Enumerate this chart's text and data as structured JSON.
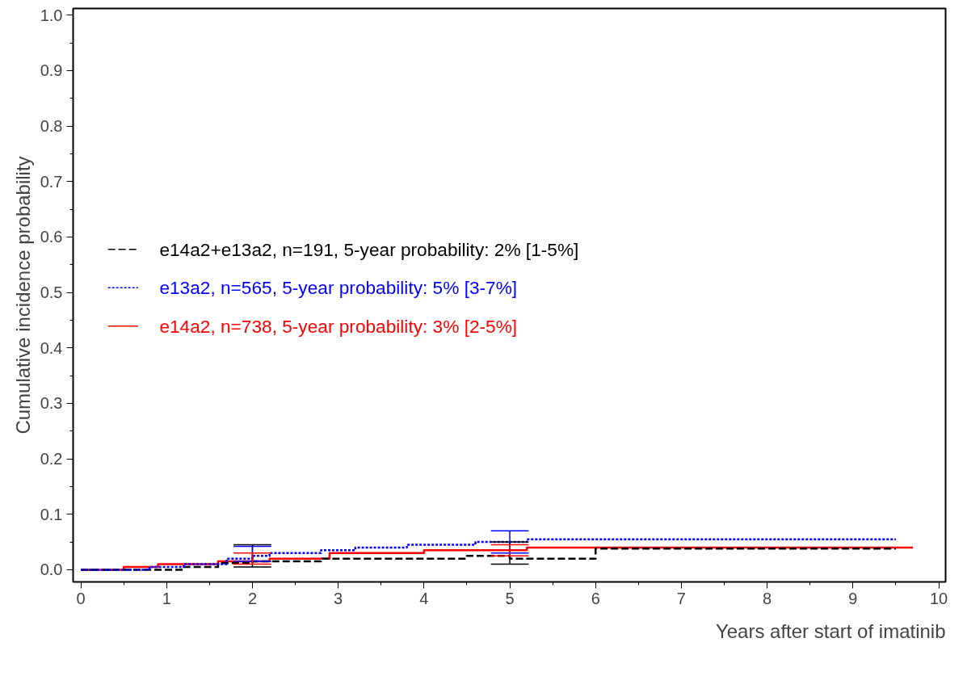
{
  "chart_data": {
    "type": "step",
    "xlabel": "Years after start of imatinib",
    "ylabel": "Cumulative incidence probability",
    "xlim": [
      -0.09,
      10.08
    ],
    "ylim": [
      -0.022,
      1.012
    ],
    "xticks": [
      0,
      1,
      2,
      3,
      4,
      5,
      6,
      7,
      8,
      9,
      10
    ],
    "yticks": [
      {
        "value": 0,
        "label": "0.0"
      },
      {
        "value": 0.1,
        "label": "0.1"
      },
      {
        "value": 0.2,
        "label": "0.2"
      },
      {
        "value": 0.3,
        "label": "0.3"
      },
      {
        "value": 0.4,
        "label": "0.4"
      },
      {
        "value": 0.5,
        "label": "0.5"
      },
      {
        "value": 0.6,
        "label": "0.6"
      },
      {
        "value": 0.7,
        "label": "0.7"
      },
      {
        "value": 0.8,
        "label": "0.8"
      },
      {
        "value": 0.9,
        "label": "0.9"
      },
      {
        "value": 1.0,
        "label": "1.0"
      }
    ],
    "grid": false,
    "legend": "left",
    "marker": "none",
    "series": [
      {
        "name": "e14a2+e13a2, n=191, 5-year probability: 2% [1-5%]",
        "color": "#000000",
        "line_style": "dashed",
        "x": [
          0,
          1.2,
          1.6,
          2,
          2.8,
          4.5,
          5,
          6,
          9.5
        ],
        "values": [
          0,
          0.005,
          0.012,
          0.015,
          0.02,
          0.025,
          0.02,
          0.038,
          0.038
        ],
        "errors": [
          null,
          null,
          null,
          [
            0.005,
            0.045
          ],
          null,
          null,
          [
            0.01,
            0.05
          ],
          null,
          null
        ]
      },
      {
        "name": "e13a2, n=565, 5-year probability: 5% [3-7%]",
        "color": "#0000ff",
        "line_style": "dotted",
        "x": [
          0,
          0.8,
          1.2,
          1.7,
          2,
          2.2,
          2.8,
          3.2,
          3.8,
          4.6,
          5,
          5.2,
          9.5
        ],
        "values": [
          0,
          0.005,
          0.01,
          0.02,
          0.025,
          0.03,
          0.035,
          0.04,
          0.045,
          0.05,
          0.05,
          0.055,
          0.055
        ],
        "errors": [
          null,
          null,
          null,
          null,
          [
            0.015,
            0.042
          ],
          null,
          null,
          null,
          null,
          null,
          [
            0.03,
            0.07
          ],
          null,
          null
        ]
      },
      {
        "name": "e14a2, n=738, 5-year probability: 3% [2-5%]",
        "color": "#ff0000",
        "line_style": "solid",
        "x": [
          0,
          0.5,
          0.9,
          1.6,
          2,
          2.2,
          2.9,
          4,
          5,
          5.2,
          9.7
        ],
        "values": [
          0,
          0.005,
          0.01,
          0.015,
          0.015,
          0.02,
          0.03,
          0.035,
          0.035,
          0.04,
          0.04
        ],
        "errors": [
          null,
          null,
          null,
          null,
          [
            0.01,
            0.03
          ],
          null,
          null,
          null,
          [
            0.025,
            0.045
          ],
          null,
          null
        ]
      }
    ]
  }
}
